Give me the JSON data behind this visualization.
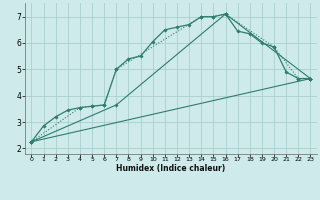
{
  "xlabel": "Humidex (Indice chaleur)",
  "background_color": "#ceeaea",
  "grid_color": "#aacece",
  "line_color": "#2e7d6e",
  "xlim": [
    -0.5,
    23.5
  ],
  "ylim": [
    1.8,
    7.5
  ],
  "yticks": [
    2,
    3,
    4,
    5,
    6,
    7
  ],
  "xticks": [
    0,
    1,
    2,
    3,
    4,
    5,
    6,
    7,
    8,
    9,
    10,
    11,
    12,
    13,
    14,
    15,
    16,
    17,
    18,
    19,
    20,
    21,
    22,
    23
  ],
  "line1_x": [
    0,
    1,
    2,
    3,
    4,
    5,
    6,
    7,
    8,
    9,
    10,
    11,
    12,
    13,
    14,
    15,
    16,
    17,
    18,
    19,
    20,
    21,
    22,
    23
  ],
  "line1_y": [
    2.25,
    2.85,
    3.2,
    3.45,
    3.55,
    3.6,
    3.65,
    5.0,
    5.4,
    5.5,
    6.05,
    6.5,
    6.6,
    6.7,
    7.0,
    7.0,
    7.1,
    6.45,
    6.35,
    6.0,
    5.85,
    4.9,
    4.65,
    4.65
  ],
  "line2_x": [
    0,
    4,
    5,
    6,
    7,
    14,
    15,
    16,
    20,
    22,
    23
  ],
  "line2_y": [
    2.25,
    3.55,
    3.6,
    3.65,
    5.0,
    7.0,
    7.0,
    7.1,
    5.85,
    4.65,
    4.65
  ],
  "line3_x": [
    0,
    23
  ],
  "line3_y": [
    2.25,
    4.65
  ],
  "line4_x": [
    0,
    7,
    16,
    23
  ],
  "line4_y": [
    2.25,
    3.65,
    7.1,
    4.65
  ]
}
